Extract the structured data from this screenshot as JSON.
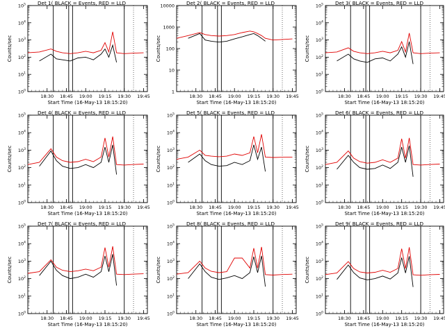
{
  "series_colors": {
    "events": "#000000",
    "lld": "#e00000"
  },
  "ylabel": "Counts/sec",
  "xlabel": "Start Time (16-May-13 18:15:20)",
  "x_ticks": [
    "18:30",
    "18:45",
    "19:00",
    "19:15",
    "19:30",
    "19:45"
  ],
  "chart_data": [
    {
      "type": "line",
      "title": "Det 1( BLACK = Events, RED = LLD",
      "ylabel": "Counts/sec",
      "xlabel": "Start Time (16-May-13 18:15:20)",
      "yscale": "log",
      "y_ticks": [
        "10^0",
        "10^1",
        "10^2",
        "10^3",
        "10^4",
        "10^5"
      ],
      "ylim": [
        1,
        100000
      ],
      "x_ticks": [
        "18:30",
        "18:45",
        "19:00",
        "19:15",
        "19:30",
        "19:45"
      ],
      "vlines": [
        18.58,
        18.78,
        18.83,
        19.5
      ],
      "x": [
        18.25,
        18.4,
        18.55,
        18.62,
        18.7,
        18.8,
        18.9,
        19.0,
        19.1,
        19.2,
        19.25,
        19.3,
        19.35,
        19.4,
        19.5,
        19.6,
        19.75
      ],
      "series": [
        {
          "name": "BLACK",
          "role": "events",
          "values": [
            null,
            60,
            150,
            80,
            70,
            60,
            90,
            100,
            70,
            150,
            300,
            100,
            500,
            50,
            null,
            null,
            null
          ]
        },
        {
          "name": "RED",
          "role": "lld",
          "values": [
            180,
            200,
            300,
            220,
            180,
            160,
            180,
            220,
            180,
            250,
            700,
            200,
            3000,
            180,
            160,
            170,
            180
          ]
        }
      ]
    },
    {
      "type": "line",
      "title": "Det 2( BLACK = Events, RED = LLD",
      "ylabel": "Counts/sec",
      "xlabel": "Start Time (16-May-13 18:15:20)",
      "yscale": "log",
      "y_ticks": [
        "1",
        "10",
        "100",
        "1000",
        "10000"
      ],
      "ylim": [
        1,
        10000
      ],
      "x_ticks": [
        "18:30",
        "18:45",
        "19:00",
        "19:15",
        "19:30",
        "19:45"
      ],
      "vlines": [
        18.58,
        18.78,
        18.83,
        19.5
      ],
      "x": [
        18.25,
        18.4,
        18.55,
        18.62,
        18.7,
        18.8,
        18.9,
        19.0,
        19.1,
        19.2,
        19.25,
        19.3,
        19.35,
        19.4,
        19.5,
        19.6,
        19.75
      ],
      "series": [
        {
          "name": "BLACK",
          "role": "events",
          "values": [
            null,
            300,
            500,
            250,
            220,
            200,
            220,
            280,
            350,
            450,
            500,
            400,
            300,
            220,
            null,
            null,
            null
          ]
        },
        {
          "name": "RED",
          "role": "lld",
          "values": [
            300,
            400,
            550,
            450,
            400,
            380,
            400,
            450,
            550,
            650,
            600,
            500,
            400,
            300,
            250,
            260,
            280
          ]
        }
      ]
    },
    {
      "type": "line",
      "title": "Det 3( BLACK = Events, RED = LLD",
      "ylabel": "Counts/sec",
      "xlabel": "Start Time (16-May-13 18:15:20)",
      "yscale": "log",
      "y_ticks": [
        "10^0",
        "10^1",
        "10^2",
        "10^3",
        "10^4",
        "10^5"
      ],
      "ylim": [
        1,
        100000
      ],
      "x_ticks": [
        "18:30",
        "18:45",
        "19:00",
        "19:15",
        "19:30",
        "19:45"
      ],
      "vlines": [
        18.58,
        18.78,
        18.83,
        19.5
      ],
      "x": [
        18.25,
        18.4,
        18.55,
        18.62,
        18.7,
        18.8,
        18.9,
        19.0,
        19.1,
        19.2,
        19.25,
        19.3,
        19.35,
        19.4,
        19.5,
        19.6,
        19.75
      ],
      "series": [
        {
          "name": "BLACK",
          "role": "events",
          "values": [
            null,
            60,
            150,
            80,
            60,
            50,
            80,
            90,
            60,
            150,
            400,
            100,
            800,
            40,
            null,
            null,
            null
          ]
        },
        {
          "name": "RED",
          "role": "lld",
          "values": [
            180,
            200,
            350,
            220,
            180,
            160,
            180,
            220,
            180,
            250,
            800,
            200,
            2500,
            180,
            160,
            170,
            180
          ]
        }
      ]
    },
    {
      "type": "line",
      "title": "Det 4( BLACK = Events, RED = LLD",
      "ylabel": "Counts/sec",
      "xlabel": "Start Time (16-May-13 18:15:20)",
      "yscale": "log",
      "y_ticks": [
        "10^0",
        "10^1",
        "10^2",
        "10^3",
        "10^4",
        "10^5"
      ],
      "ylim": [
        1,
        100000
      ],
      "x_ticks": [
        "18:30",
        "18:45",
        "19:00",
        "19:15",
        "19:30",
        "19:45"
      ],
      "vlines": [
        18.58,
        18.78,
        18.83,
        19.5
      ],
      "x": [
        18.25,
        18.4,
        18.55,
        18.62,
        18.7,
        18.8,
        18.9,
        19.0,
        19.1,
        19.2,
        19.25,
        19.3,
        19.35,
        19.4,
        19.5,
        19.6,
        19.75
      ],
      "series": [
        {
          "name": "BLACK",
          "role": "events",
          "values": [
            null,
            120,
            900,
            250,
            120,
            90,
            100,
            150,
            100,
            200,
            1500,
            200,
            2000,
            40,
            null,
            null,
            null
          ]
        },
        {
          "name": "RED",
          "role": "lld",
          "values": [
            150,
            200,
            1200,
            400,
            250,
            200,
            220,
            300,
            220,
            400,
            5000,
            400,
            6000,
            150,
            140,
            150,
            160
          ]
        }
      ]
    },
    {
      "type": "line",
      "title": "Det 5( BLACK = Events, RED = LLD",
      "ylabel": "Counts/sec",
      "xlabel": "Start Time (16-May-13 18:15:20)",
      "yscale": "log",
      "y_ticks": [
        "10^0",
        "10^1",
        "10^2",
        "10^3",
        "10^4",
        "10^5"
      ],
      "ylim": [
        1,
        100000
      ],
      "x_ticks": [
        "18:30",
        "18:45",
        "19:00",
        "19:15",
        "19:30",
        "19:45"
      ],
      "vlines": [
        18.58,
        18.78,
        18.83,
        19.5
      ],
      "x": [
        18.25,
        18.4,
        18.55,
        18.62,
        18.7,
        18.8,
        18.9,
        19.0,
        19.1,
        19.2,
        19.25,
        19.3,
        19.35,
        19.4,
        19.5,
        19.6,
        19.75
      ],
      "series": [
        {
          "name": "BLACK",
          "role": "events",
          "values": [
            null,
            200,
            600,
            250,
            150,
            120,
            130,
            200,
            150,
            250,
            2000,
            300,
            1500,
            60,
            null,
            null,
            null
          ]
        },
        {
          "name": "RED",
          "role": "lld",
          "values": [
            300,
            400,
            1000,
            500,
            450,
            420,
            450,
            600,
            500,
            700,
            6000,
            700,
            8000,
            400,
            380,
            390,
            400
          ]
        }
      ]
    },
    {
      "type": "line",
      "title": "Det 6( BLACK = Events, RED = LLD",
      "ylabel": "Counts/sec",
      "xlabel": "Start Time (16-May-13 18:15:20)",
      "yscale": "log",
      "y_ticks": [
        "10^0",
        "10^1",
        "10^2",
        "10^3",
        "10^4",
        "10^5"
      ],
      "ylim": [
        1,
        100000
      ],
      "x_ticks": [
        "18:30",
        "18:45",
        "19:00",
        "19:15",
        "19:30",
        "19:45"
      ],
      "vlines": [
        18.58,
        18.78,
        18.83,
        19.5
      ],
      "x": [
        18.25,
        18.4,
        18.55,
        18.62,
        18.7,
        18.8,
        18.9,
        19.0,
        19.1,
        19.2,
        19.25,
        19.3,
        19.35,
        19.4,
        19.5,
        19.6,
        19.75
      ],
      "series": [
        {
          "name": "BLACK",
          "role": "events",
          "values": [
            null,
            80,
            500,
            200,
            100,
            80,
            90,
            140,
            90,
            200,
            1500,
            200,
            1800,
            30,
            null,
            null,
            null
          ]
        },
        {
          "name": "RED",
          "role": "lld",
          "values": [
            150,
            200,
            900,
            350,
            220,
            180,
            200,
            280,
            200,
            350,
            4500,
            350,
            5000,
            150,
            140,
            150,
            160
          ]
        }
      ]
    },
    {
      "type": "line",
      "title": "Det 7( BLACK = Events, RED = LLD",
      "ylabel": "Counts/sec",
      "xlabel": "Start Time (16-May-13 18:15:20)",
      "yscale": "log",
      "y_ticks": [
        "10^0",
        "10^1",
        "10^2",
        "10^3",
        "10^4",
        "10^5"
      ],
      "ylim": [
        1,
        100000
      ],
      "x_ticks": [
        "18:30",
        "18:45",
        "19:00",
        "19:15",
        "19:30",
        "19:45"
      ],
      "vlines": [
        18.58,
        18.78,
        18.83,
        19.5
      ],
      "x": [
        18.25,
        18.4,
        18.55,
        18.62,
        18.7,
        18.8,
        18.9,
        19.0,
        19.1,
        19.2,
        19.25,
        19.3,
        19.35,
        19.4,
        19.5,
        19.6,
        19.75
      ],
      "series": [
        {
          "name": "BLACK",
          "role": "events",
          "values": [
            null,
            150,
            1000,
            300,
            150,
            100,
            120,
            180,
            120,
            250,
            2000,
            250,
            2500,
            40,
            null,
            null,
            null
          ]
        },
        {
          "name": "RED",
          "role": "lld",
          "values": [
            200,
            250,
            1200,
            450,
            300,
            250,
            280,
            350,
            280,
            450,
            6000,
            450,
            7000,
            180,
            170,
            180,
            190
          ]
        }
      ]
    },
    {
      "type": "line",
      "title": "Det 8( BLACK = Events, RED = LLD",
      "ylabel": "Counts/sec",
      "xlabel": "Start Time (16-May-13 18:15:20)",
      "yscale": "log",
      "y_ticks": [
        "10^0",
        "10^1",
        "10^2",
        "10^3",
        "10^4",
        "10^5"
      ],
      "ylim": [
        1,
        100000
      ],
      "x_ticks": [
        "18:30",
        "18:45",
        "19:00",
        "19:15",
        "19:30",
        "19:45"
      ],
      "vlines": [
        18.58,
        18.78,
        18.83,
        19.5
      ],
      "x": [
        18.25,
        18.4,
        18.55,
        18.62,
        18.7,
        18.8,
        18.9,
        19.0,
        19.1,
        19.2,
        19.25,
        19.3,
        19.35,
        19.4,
        19.5,
        19.6,
        19.75
      ],
      "series": [
        {
          "name": "BLACK",
          "role": "events",
          "values": [
            null,
            100,
            700,
            250,
            120,
            90,
            110,
            150,
            100,
            220,
            1800,
            220,
            2000,
            35,
            null,
            null,
            null
          ]
        },
        {
          "name": "RED",
          "role": "lld",
          "values": [
            180,
            220,
            1000,
            400,
            260,
            220,
            250,
            1500,
            1500,
            400,
            5500,
            400,
            6500,
            170,
            160,
            170,
            180
          ]
        }
      ]
    },
    {
      "type": "line",
      "title": "Det 9( BLACK = Events, RED = LLD",
      "ylabel": "Counts/sec",
      "xlabel": "Start Time (16-May-13 18:15:20)",
      "yscale": "log",
      "y_ticks": [
        "10^0",
        "10^1",
        "10^2",
        "10^3",
        "10^4",
        "10^5"
      ],
      "ylim": [
        1,
        100000
      ],
      "x_ticks": [
        "18:30",
        "18:45",
        "19:00",
        "19:15",
        "19:30",
        "19:45"
      ],
      "vlines": [
        18.58,
        18.78,
        18.83,
        19.5
      ],
      "x": [
        18.25,
        18.4,
        18.55,
        18.62,
        18.7,
        18.8,
        18.9,
        19.0,
        19.1,
        19.2,
        19.25,
        19.3,
        19.35,
        19.4,
        19.5,
        19.6,
        19.75
      ],
      "series": [
        {
          "name": "BLACK",
          "role": "events",
          "values": [
            null,
            90,
            600,
            220,
            110,
            85,
            100,
            140,
            95,
            210,
            1600,
            210,
            1900,
            33,
            null,
            null,
            null
          ]
        },
        {
          "name": "RED",
          "role": "lld",
          "values": [
            170,
            210,
            950,
            380,
            240,
            210,
            230,
            300,
            230,
            380,
            5200,
            380,
            6200,
            165,
            155,
            165,
            175
          ]
        }
      ]
    }
  ]
}
